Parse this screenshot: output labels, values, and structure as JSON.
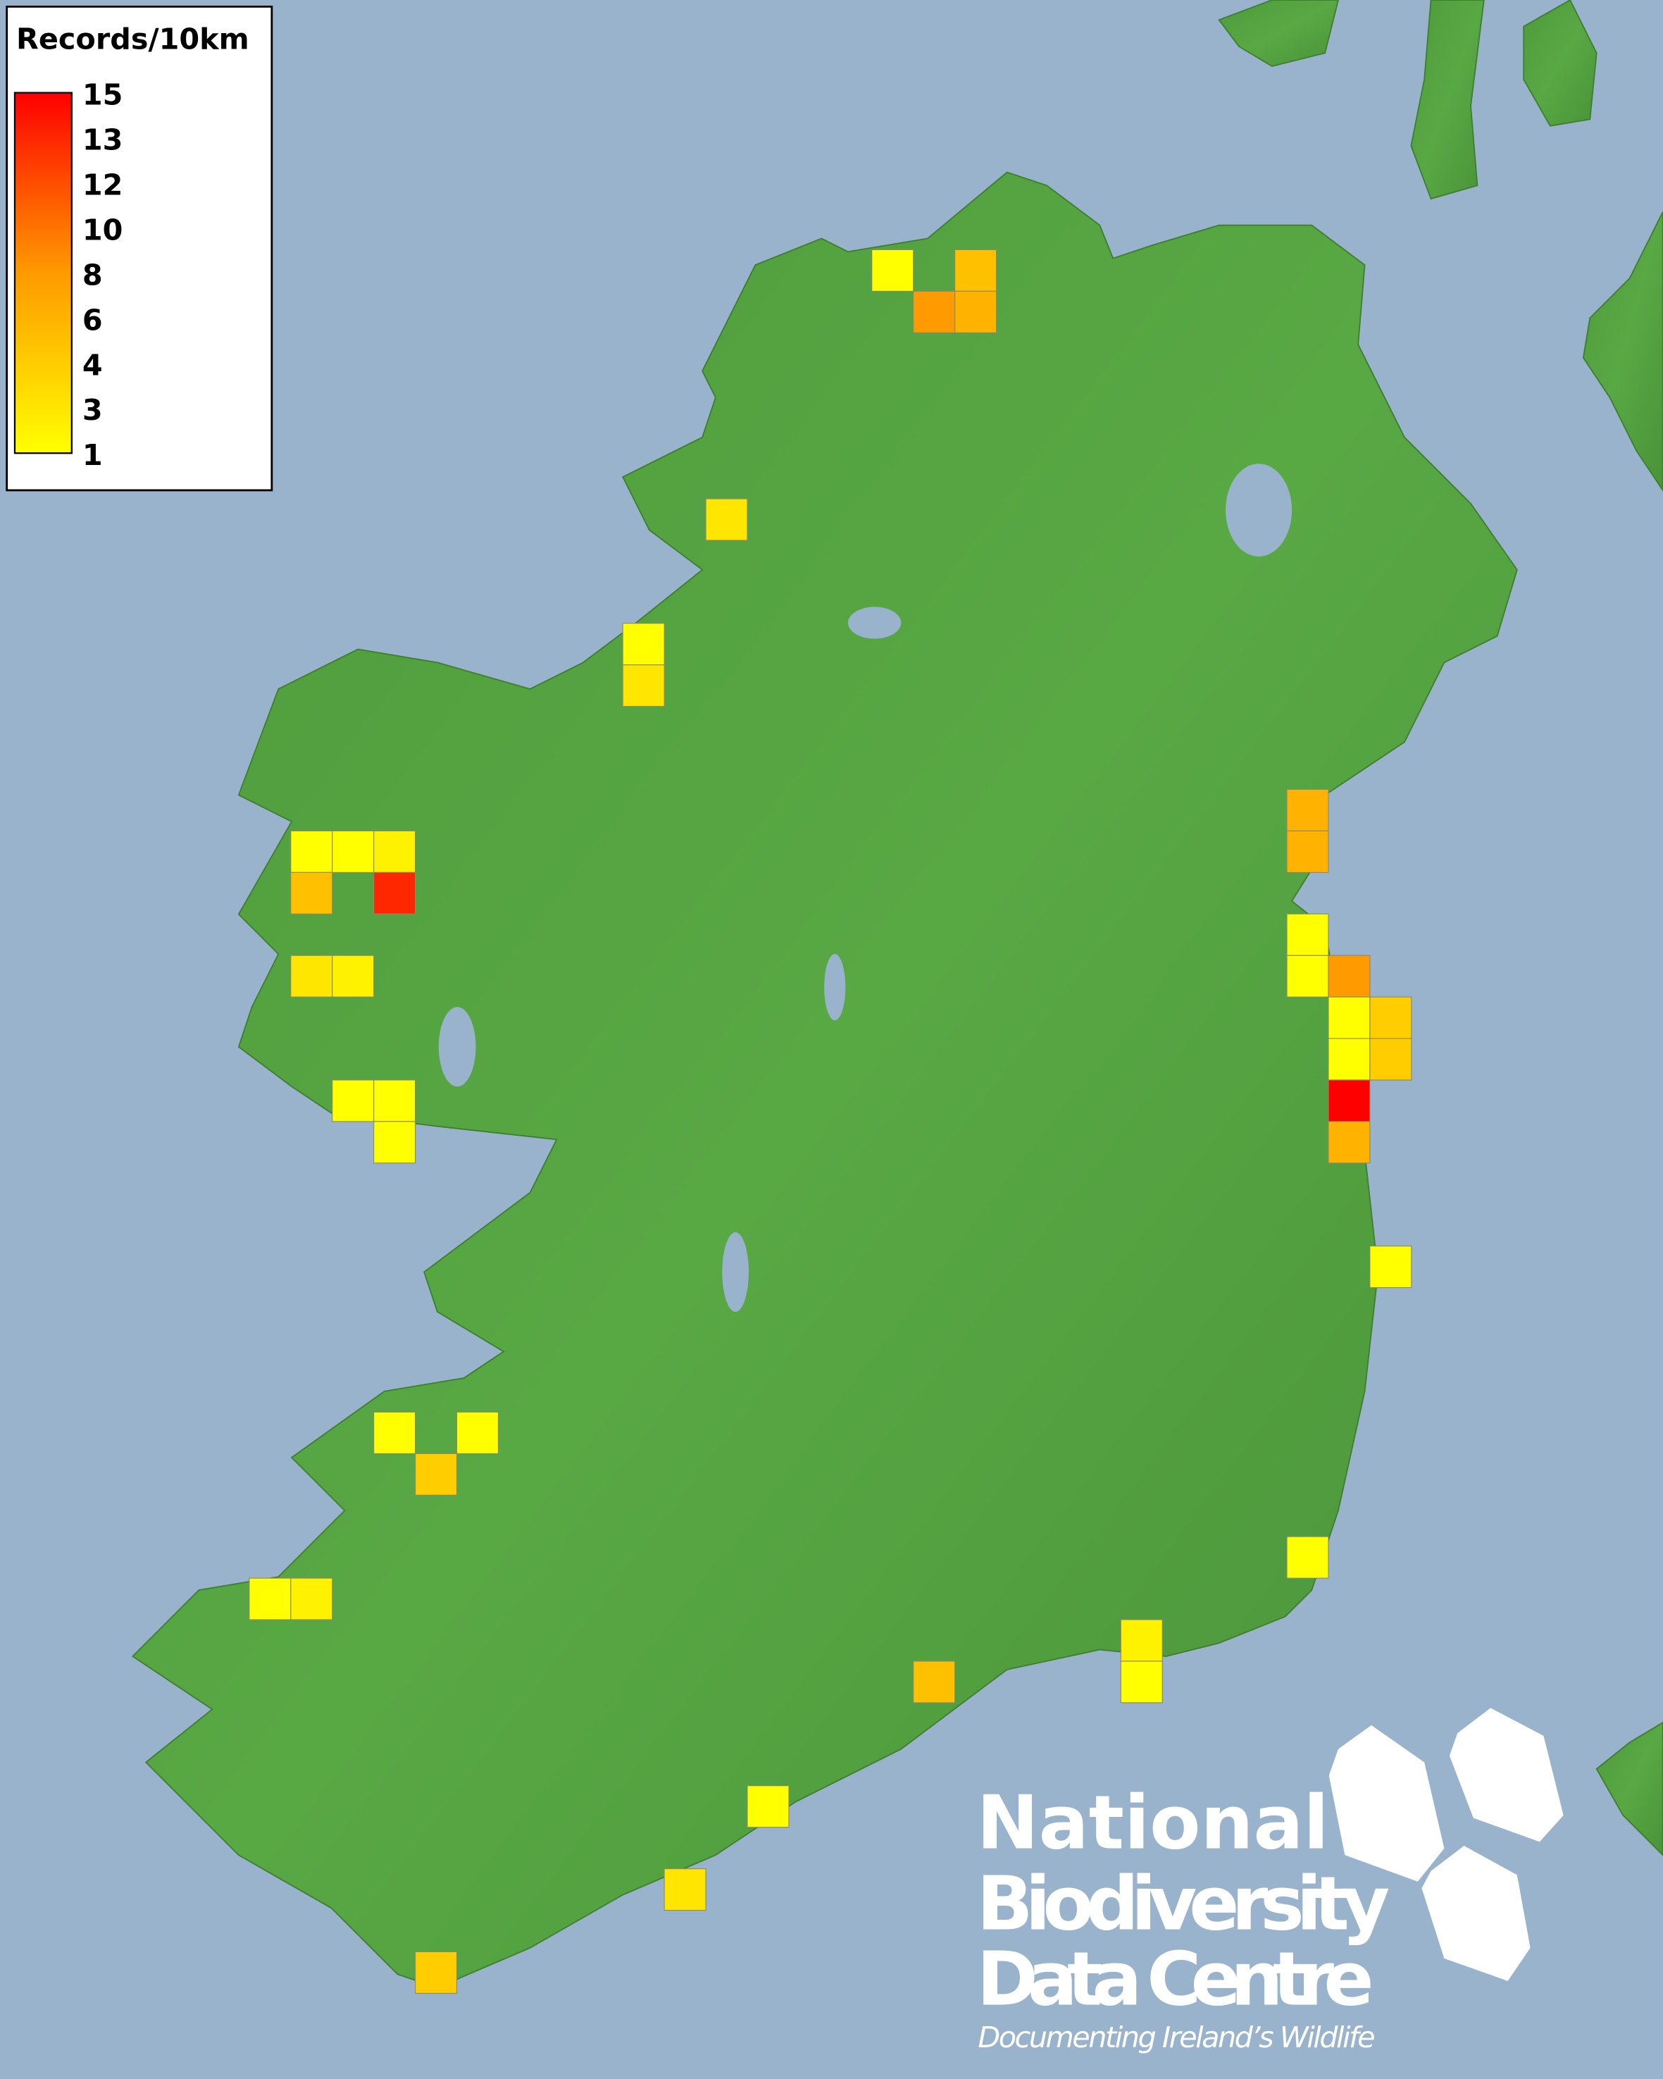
{
  "legend": {
    "title": "Records/10km",
    "ticks": [
      "15",
      "13",
      "12",
      "10",
      "8",
      "6",
      "4",
      "3",
      "1"
    ],
    "colors": {
      "low": "#ffff00",
      "mid": "#ff8c00",
      "high": "#ff0000"
    }
  },
  "map": {
    "sea_color": "#9ab3cd",
    "land_color": "#4e9e3e",
    "grid_unit": "10km",
    "squares": [
      {
        "e": 210,
        "n": 440,
        "records": 1
      },
      {
        "e": 230,
        "n": 440,
        "records": 5
      },
      {
        "e": 220,
        "n": 430,
        "records": 8
      },
      {
        "e": 230,
        "n": 430,
        "records": 6
      },
      {
        "e": 170,
        "n": 380,
        "records": 3
      },
      {
        "e": 150,
        "n": 350,
        "records": 1
      },
      {
        "e": 150,
        "n": 340,
        "records": 3
      },
      {
        "e": 70,
        "n": 300,
        "records": 1
      },
      {
        "e": 80,
        "n": 300,
        "records": 1
      },
      {
        "e": 90,
        "n": 300,
        "records": 2
      },
      {
        "e": 70,
        "n": 290,
        "records": 5
      },
      {
        "e": 90,
        "n": 290,
        "records": 13
      },
      {
        "e": 70,
        "n": 270,
        "records": 3
      },
      {
        "e": 80,
        "n": 270,
        "records": 2
      },
      {
        "e": 80,
        "n": 240,
        "records": 1
      },
      {
        "e": 90,
        "n": 240,
        "records": 1
      },
      {
        "e": 90,
        "n": 230,
        "records": 1
      },
      {
        "e": 310,
        "n": 310,
        "records": 6
      },
      {
        "e": 310,
        "n": 300,
        "records": 6
      },
      {
        "e": 310,
        "n": 280,
        "records": 1
      },
      {
        "e": 310,
        "n": 270,
        "records": 1
      },
      {
        "e": 320,
        "n": 270,
        "records": 8
      },
      {
        "e": 320,
        "n": 260,
        "records": 1
      },
      {
        "e": 330,
        "n": 260,
        "records": 4
      },
      {
        "e": 320,
        "n": 250,
        "records": 1
      },
      {
        "e": 330,
        "n": 250,
        "records": 4
      },
      {
        "e": 320,
        "n": 240,
        "records": 15
      },
      {
        "e": 320,
        "n": 230,
        "records": 6
      },
      {
        "e": 330,
        "n": 200,
        "records": 1
      },
      {
        "e": 90,
        "n": 160,
        "records": 1
      },
      {
        "e": 110,
        "n": 160,
        "records": 1
      },
      {
        "e": 100,
        "n": 150,
        "records": 4
      },
      {
        "e": 60,
        "n": 120,
        "records": 1
      },
      {
        "e": 70,
        "n": 120,
        "records": 2
      },
      {
        "e": 310,
        "n": 130,
        "records": 1
      },
      {
        "e": 270,
        "n": 110,
        "records": 2
      },
      {
        "e": 270,
        "n": 100,
        "records": 1
      },
      {
        "e": 220,
        "n": 100,
        "records": 5
      },
      {
        "e": 180,
        "n": 70,
        "records": 1
      },
      {
        "e": 160,
        "n": 50,
        "records": 3
      },
      {
        "e": 100,
        "n": 30,
        "records": 4
      }
    ]
  },
  "logo": {
    "line1": "National",
    "line2": "Biodiversity",
    "line3": "Data Centre",
    "tagline": "Documenting Ireland’s Wildlife"
  }
}
